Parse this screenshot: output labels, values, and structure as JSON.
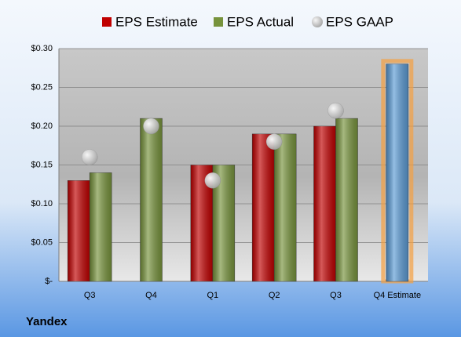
{
  "chart_data": {
    "type": "bar",
    "title": "Yandex",
    "categories": [
      "Q3",
      "Q4",
      "Q1",
      "Q2",
      "Q3",
      "Q4 Estimate"
    ],
    "series": [
      {
        "name": "EPS Estimate",
        "color": "#c00000",
        "values": [
          0.13,
          null,
          0.15,
          0.19,
          0.2,
          0.28
        ],
        "highlight_index": 5,
        "highlight_color": "#5b9bd5"
      },
      {
        "name": "EPS Actual",
        "color": "#77933c",
        "values": [
          0.14,
          0.21,
          0.15,
          0.19,
          0.21,
          null
        ]
      },
      {
        "name": "EPS GAAP",
        "color": "#a6a6a6",
        "marker": "circle",
        "values": [
          0.16,
          0.2,
          0.13,
          0.18,
          0.22,
          null
        ]
      }
    ],
    "ylim": [
      0,
      0.3
    ],
    "yticks": [
      {
        "value": 0,
        "label": "$-"
      },
      {
        "value": 0.05,
        "label": "$0.05"
      },
      {
        "value": 0.1,
        "label": "$0.10"
      },
      {
        "value": 0.15,
        "label": "$0.15"
      },
      {
        "value": 0.2,
        "label": "$0.20"
      },
      {
        "value": 0.25,
        "label": "$0.25"
      },
      {
        "value": 0.3,
        "label": "$0.30"
      }
    ],
    "grid": true,
    "legend": "top"
  }
}
